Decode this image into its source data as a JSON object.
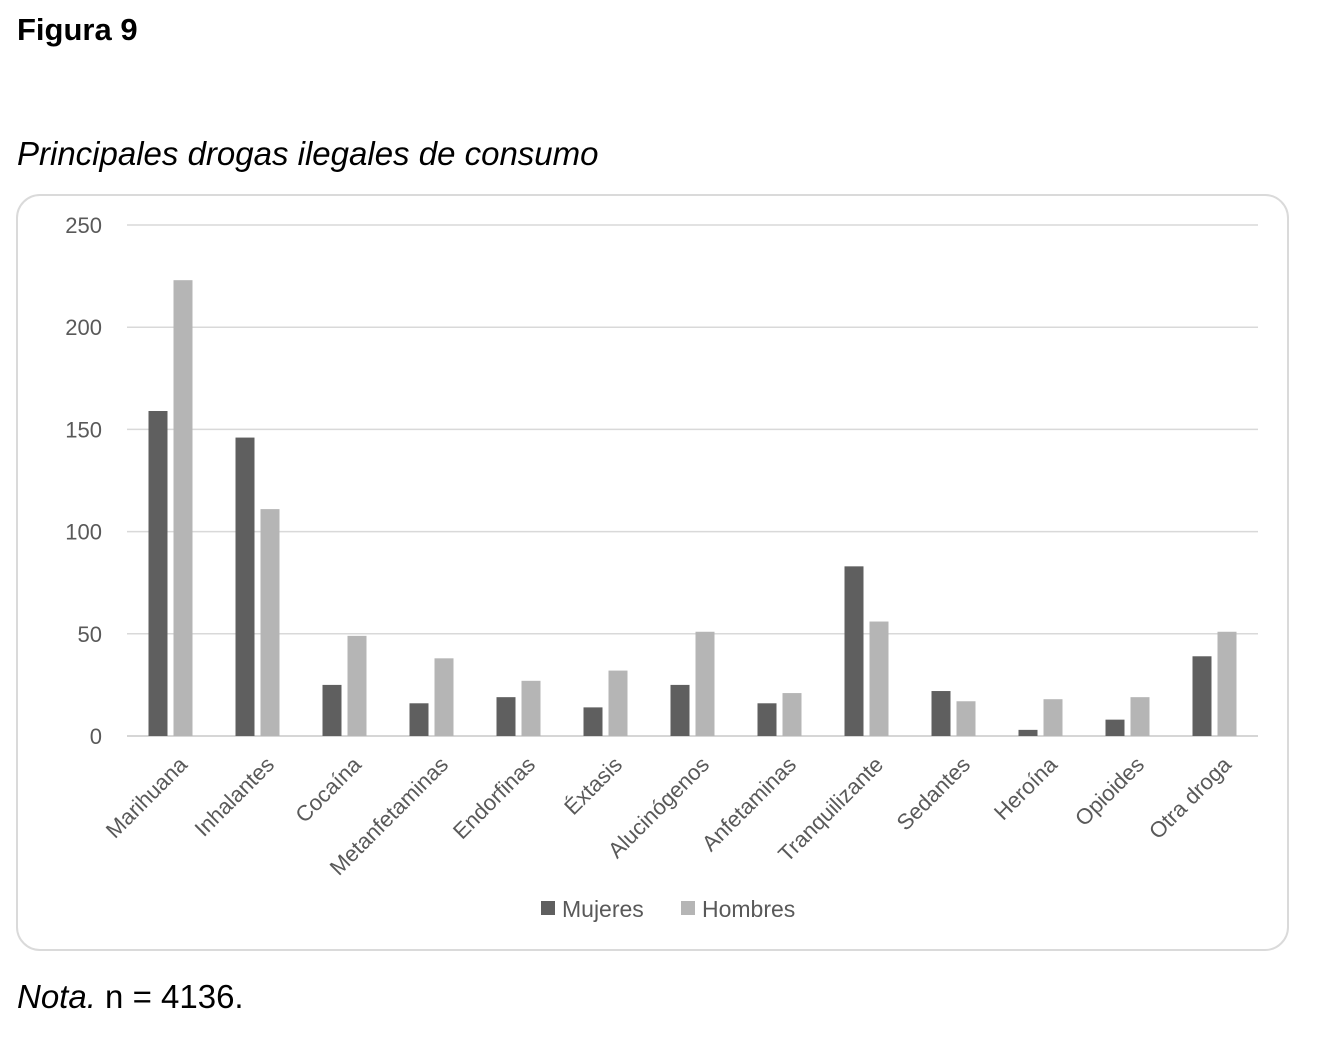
{
  "figure": {
    "label": "Figura 9",
    "title": "Principales drogas ilegales de consumo"
  },
  "note": {
    "label": "Nota.",
    "text": " n = 4136."
  },
  "chart_data": {
    "type": "bar",
    "title": "",
    "xlabel": "",
    "ylabel": "",
    "ylim": [
      0,
      250
    ],
    "yticks": [
      0,
      50,
      100,
      150,
      200,
      250
    ],
    "grid": true,
    "legend_position": "bottom",
    "categories": [
      "Marihuana",
      "Inhalantes",
      "Cocaína",
      "Metanfetaminas",
      "Endorfinas",
      "Éxtasis",
      "Alucinógenos",
      "Anfetaminas",
      "Tranquilizante",
      "Sedantes",
      "Heroína",
      "Opioides",
      "Otra droga"
    ],
    "series": [
      {
        "name": "Mujeres",
        "color": "#5f5f5f",
        "values": [
          159,
          146,
          25,
          16,
          19,
          14,
          25,
          16,
          83,
          22,
          3,
          8,
          39
        ]
      },
      {
        "name": "Hombres",
        "color": "#b5b5b5",
        "values": [
          223,
          111,
          49,
          38,
          27,
          32,
          51,
          21,
          56,
          17,
          18,
          19,
          51
        ]
      }
    ]
  }
}
